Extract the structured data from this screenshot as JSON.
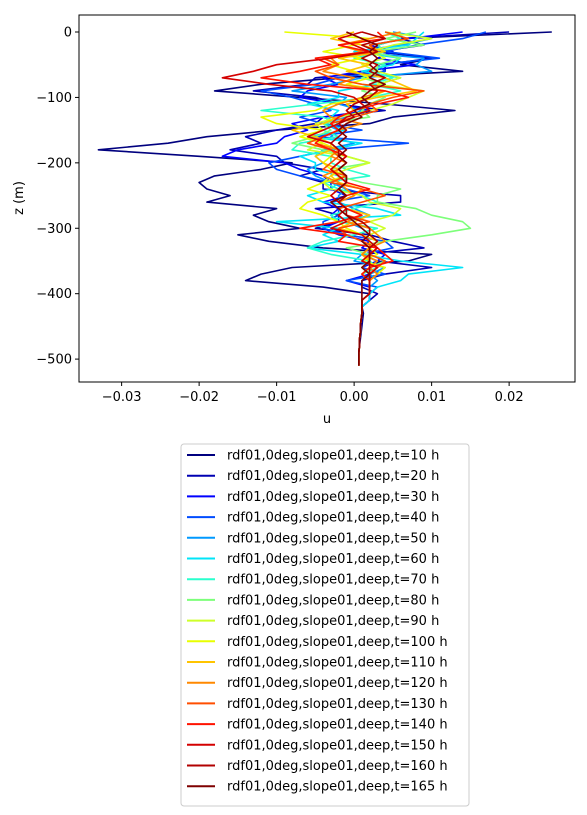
{
  "chart_data": {
    "type": "line",
    "title": "",
    "xlabel": "u",
    "ylabel": "z (m)",
    "xlim": [
      -0.0355,
      0.0285
    ],
    "ylim": [
      -535,
      26
    ],
    "xticks": [
      -0.03,
      -0.02,
      -0.01,
      0.0,
      0.01,
      0.02
    ],
    "xtick_labels": [
      "−0.03",
      "−0.02",
      "−0.01",
      "0.00",
      "0.01",
      "0.02"
    ],
    "yticks": [
      0,
      -100,
      -200,
      -300,
      -400,
      -500
    ],
    "ytick_labels": [
      "0",
      "−100",
      "−200",
      "−300",
      "−400",
      "−500"
    ],
    "grid": false,
    "legend_position": "below",
    "z": [
      0,
      -10,
      -20,
      -30,
      -40,
      -50,
      -60,
      -70,
      -80,
      -90,
      -100,
      -110,
      -120,
      -130,
      -140,
      -150,
      -160,
      -170,
      -180,
      -190,
      -200,
      -210,
      -220,
      -230,
      -240,
      -250,
      -260,
      -270,
      -280,
      -290,
      -300,
      -310,
      -320,
      -330,
      -340,
      -350,
      -360,
      -370,
      -380,
      -390,
      -400,
      -410,
      -420,
      -430,
      -440,
      -450,
      -460,
      -470,
      -480,
      -490,
      -500,
      -510
    ],
    "series": [
      {
        "name": "rdf01,0deg,slope01,deep,t=10 h",
        "color": "#00007f",
        "values": [
          0.0255,
          0.006,
          0.003,
          0.004,
          0.01,
          0.006,
          0.014,
          -0.002,
          -0.012,
          -0.018,
          -0.007,
          0.004,
          0.013,
          0.005,
          0.002,
          -0.01,
          -0.019,
          -0.024,
          -0.033,
          -0.02,
          -0.008,
          -0.012,
          -0.018,
          -0.02,
          -0.019,
          -0.016,
          -0.019,
          -0.01,
          -0.013,
          -0.011,
          -0.007,
          -0.015,
          -0.011,
          -0.004,
          0.01,
          0.007,
          -0.008,
          -0.012,
          -0.014,
          -0.004,
          0.002,
          0.002,
          0.001,
          0.0012,
          0.0011,
          0.001,
          0.0009,
          0.0008,
          0.0007,
          0.0006,
          0.0006,
          0.0006
        ]
      },
      {
        "name": "rdf01,0deg,slope01,deep,t=20 h",
        "color": "#0000b2",
        "values": [
          0.02,
          0.006,
          0.009,
          0.003,
          0.01,
          0.004,
          0.004,
          -0.005,
          -0.006,
          -0.013,
          -0.005,
          -0.002,
          0.004,
          -0.004,
          -0.005,
          -0.01,
          -0.014,
          -0.012,
          -0.016,
          -0.01,
          -0.009,
          -0.004,
          -0.007,
          -0.004,
          -0.004,
          0.006,
          0.006,
          -0.005,
          -0.002,
          -0.002,
          -0.005,
          0.002,
          0.005,
          0.009,
          0.001,
          0.003,
          0.01,
          0.004,
          0.001,
          0.001,
          0.003,
          0.002,
          0.001,
          0.001,
          0.001,
          0.0009,
          0.0008,
          0.0007,
          0.0007,
          0.0006,
          0.0006,
          0.0006
        ]
      },
      {
        "name": "rdf01,0deg,slope01,deep,t=30 h",
        "color": "#0000ff",
        "values": [
          0.014,
          0.007,
          0.002,
          0.005,
          0.003,
          0.008,
          0.001,
          -0.004,
          -0.002,
          -0.006,
          -0.007,
          -0.002,
          0.002,
          -0.004,
          -0.008,
          -0.006,
          -0.009,
          -0.01,
          -0.015,
          -0.017,
          -0.009,
          -0.007,
          -0.004,
          -0.003,
          -0.003,
          -0.001,
          -0.004,
          -0.002,
          -0.003,
          -0.002,
          -0.004,
          -0.002,
          0.002,
          0.001,
          0.004,
          0.003,
          0.001,
          0.002,
          -0.001,
          0.002,
          0.002,
          0.002,
          0.001,
          0.001,
          0.0009,
          0.0008,
          0.0008,
          0.0007,
          0.0007,
          0.0006,
          0.0006,
          0.0006
        ]
      },
      {
        "name": "rdf01,0deg,slope01,deep,t=40 h",
        "color": "#004cff",
        "values": [
          0.017,
          0.014,
          0.008,
          0.004,
          0.011,
          0.003,
          0.004,
          -0.002,
          -0.005,
          -0.012,
          -0.008,
          -0.005,
          -0.003,
          -0.007,
          -0.004,
          0.001,
          -0.005,
          0.007,
          -0.003,
          -0.007,
          -0.011,
          -0.01,
          -0.007,
          -0.003,
          -0.001,
          0.002,
          -0.003,
          -0.002,
          -0.002,
          -0.004,
          -0.004,
          -0.001,
          0.004,
          0.005,
          0.001,
          0.002,
          0.001,
          0.004,
          -0.001,
          0.003,
          0.002,
          0.002,
          0.001,
          0.001,
          0.0009,
          0.0008,
          0.0008,
          0.0007,
          0.0007,
          0.0006,
          0.0006,
          0.0006
        ]
      },
      {
        "name": "rdf01,0deg,slope01,deep,t=50 h",
        "color": "#0099ff",
        "values": [
          0.005,
          0.01,
          0.006,
          0.0,
          0.009,
          0.008,
          0.01,
          0.001,
          -0.003,
          -0.008,
          -0.001,
          -0.002,
          0.001,
          -0.001,
          -0.004,
          -0.002,
          -0.003,
          0.0,
          -0.004,
          -0.005,
          -0.004,
          -0.006,
          -0.005,
          -0.003,
          -0.001,
          -0.002,
          -0.002,
          0.0,
          0.002,
          -0.001,
          0.001,
          0.002,
          0.003,
          0.002,
          0.001,
          0.0,
          0.004,
          0.002,
          0.003,
          0.002,
          0.002,
          0.001,
          0.001,
          0.001,
          0.0009,
          0.0008,
          0.0008,
          0.0007,
          0.0007,
          0.0006,
          0.0006,
          0.0006
        ]
      },
      {
        "name": "rdf01,0deg,slope01,deep,t=60 h",
        "color": "#00e5f8",
        "values": [
          0.009,
          0.008,
          0.007,
          0.0,
          0.006,
          0.005,
          0.001,
          0.006,
          0.003,
          -0.002,
          -0.002,
          -0.006,
          -0.002,
          -0.003,
          -0.004,
          -0.001,
          -0.006,
          0.001,
          -0.003,
          -0.007,
          -0.005,
          -0.005,
          -0.002,
          -0.002,
          -0.003,
          -0.006,
          -0.004,
          0.003,
          0.006,
          -0.01,
          -0.002,
          -0.004,
          -0.002,
          -0.006,
          0.001,
          0.006,
          0.014,
          0.007,
          0.006,
          0.003,
          0.002,
          0.002,
          0.001,
          0.001,
          0.0009,
          0.0008,
          0.0008,
          0.0007,
          0.0007,
          0.0006,
          0.0006,
          0.0006
        ]
      },
      {
        "name": "rdf01,0deg,slope01,deep,t=70 h",
        "color": "#29ffce",
        "values": [
          0.004,
          0.006,
          0.003,
          0.004,
          0.0,
          0.004,
          0.002,
          0.005,
          0.002,
          0.006,
          0.002,
          -0.005,
          -0.012,
          -0.004,
          -0.002,
          -0.004,
          -0.002,
          -0.007,
          -0.008,
          -0.003,
          -0.003,
          -0.001,
          0.002,
          -0.004,
          -0.002,
          0.001,
          0.003,
          0.0,
          -0.003,
          -0.002,
          0.003,
          0.0,
          -0.004,
          -0.006,
          -0.003,
          0.002,
          0.003,
          0.001,
          0.002,
          0.002,
          0.002,
          0.001,
          0.001,
          0.001,
          0.0009,
          0.0008,
          0.0008,
          0.0007,
          0.0007,
          0.0006,
          0.0006,
          0.0006
        ]
      },
      {
        "name": "rdf01,0deg,slope01,deep,t=80 h",
        "color": "#7dff7a",
        "values": [
          0.008,
          0.004,
          0.009,
          0.002,
          0.006,
          0.003,
          0.003,
          0.001,
          0.004,
          0.001,
          0.004,
          0.002,
          0.001,
          0.002,
          -0.004,
          -0.003,
          -0.005,
          -0.008,
          -0.004,
          -0.001,
          0.002,
          -0.003,
          -0.002,
          0.001,
          0.006,
          0.003,
          0.003,
          0.008,
          0.01,
          0.014,
          0.015,
          0.01,
          0.004,
          -0.001,
          0.002,
          0.004,
          0.002,
          0.001,
          0.002,
          0.002,
          0.002,
          0.001,
          0.001,
          0.001,
          0.0009,
          0.0008,
          0.0008,
          0.0007,
          0.0007,
          0.0006,
          0.0006,
          0.0006
        ]
      },
      {
        "name": "rdf01,0deg,slope01,deep,t=90 h",
        "color": "#ceff29",
        "values": [
          0.004,
          0.01,
          0.005,
          0.002,
          0.004,
          0.001,
          0.003,
          0.006,
          0.003,
          0.009,
          0.007,
          0.005,
          0.002,
          -0.002,
          -0.005,
          -0.004,
          -0.006,
          -0.004,
          -0.006,
          -0.001,
          0.002,
          -0.001,
          -0.003,
          -0.004,
          -0.003,
          0.001,
          0.002,
          0.006,
          0.005,
          0.002,
          0.004,
          0.002,
          0.003,
          0.002,
          0.001,
          0.002,
          0.001,
          0.002,
          0.002,
          0.002,
          0.002,
          0.001,
          0.001,
          0.001,
          0.0009,
          0.0008,
          0.0008,
          0.0007,
          0.0007,
          0.0006,
          0.0006,
          0.0006
        ]
      },
      {
        "name": "rdf01,0deg,slope01,deep,t=100 h",
        "color": "#e8ff00",
        "values": [
          -0.009,
          0.002,
          0.0,
          -0.004,
          0.001,
          -0.003,
          0.0,
          0.002,
          -0.001,
          0.004,
          0.002,
          -0.003,
          -0.005,
          -0.012,
          -0.01,
          -0.004,
          -0.007,
          -0.004,
          -0.002,
          -0.003,
          -0.004,
          -0.003,
          -0.001,
          -0.004,
          -0.006,
          -0.003,
          -0.006,
          -0.007,
          -0.004,
          -0.002,
          -0.001,
          0.001,
          0.002,
          0.002,
          0.003,
          0.001,
          0.004,
          0.003,
          0.002,
          0.002,
          0.002,
          0.001,
          0.001,
          0.001,
          0.0009,
          0.0008,
          0.0008,
          0.0007,
          0.0007,
          0.0006,
          0.0006,
          0.0006
        ]
      },
      {
        "name": "rdf01,0deg,slope01,deep,t=110 h",
        "color": "#ffc400",
        "values": [
          0.0,
          -0.003,
          0.001,
          0.004,
          -0.002,
          0.002,
          -0.001,
          0.004,
          0.006,
          0.008,
          0.003,
          -0.001,
          0.0,
          -0.002,
          -0.004,
          -0.008,
          -0.005,
          -0.003,
          -0.003,
          -0.005,
          -0.004,
          -0.002,
          -0.003,
          -0.002,
          0.001,
          0.0,
          -0.002,
          -0.001,
          0.002,
          0.0,
          -0.002,
          0.001,
          0.003,
          0.002,
          0.001,
          0.002,
          0.002,
          0.001,
          0.002,
          0.002,
          0.002,
          0.001,
          0.001,
          0.001,
          0.0009,
          0.0008,
          0.0008,
          0.0007,
          0.0007,
          0.0006,
          0.0006,
          0.0006
        ]
      },
      {
        "name": "rdf01,0deg,slope01,deep,t=120 h",
        "color": "#ff8900",
        "values": [
          0.006,
          0.002,
          -0.002,
          0.001,
          -0.003,
          -0.002,
          -0.004,
          0.0,
          -0.002,
          0.004,
          0.001,
          -0.002,
          -0.004,
          -0.003,
          0.001,
          -0.002,
          -0.004,
          -0.005,
          -0.002,
          -0.003,
          -0.001,
          -0.002,
          -0.004,
          -0.002,
          -0.001,
          0.0,
          -0.002,
          -0.001,
          0.001,
          -0.001,
          0.002,
          0.003,
          0.004,
          0.002,
          0.001,
          0.003,
          0.002,
          0.003,
          0.002,
          0.002,
          0.002,
          0.001,
          0.001,
          0.001,
          0.0009,
          0.0008,
          0.0008,
          0.0007,
          0.0007,
          0.0006,
          0.0006,
          0.0006
        ]
      },
      {
        "name": "rdf01,0deg,slope01,deep,t=130 h",
        "color": "#ff4e00",
        "values": [
          0.004,
          0.007,
          0.002,
          0.003,
          -0.004,
          -0.002,
          -0.005,
          -0.003,
          0.001,
          0.009,
          0.005,
          0.002,
          0.003,
          0.0,
          -0.003,
          -0.002,
          -0.004,
          -0.006,
          -0.003,
          -0.002,
          -0.003,
          -0.004,
          -0.001,
          -0.003,
          0.001,
          0.004,
          0.001,
          -0.002,
          -0.001,
          0.002,
          -0.002,
          -0.001,
          0.001,
          0.003,
          0.002,
          0.004,
          0.003,
          0.002,
          0.002,
          0.002,
          0.002,
          0.001,
          0.001,
          0.001,
          0.0009,
          0.0008,
          0.0008,
          0.0007,
          0.0007,
          0.0006,
          0.0006,
          0.0006
        ]
      },
      {
        "name": "rdf01,0deg,slope01,deep,t=140 h",
        "color": "#ff1300",
        "values": [
          0.003,
          0.004,
          -0.002,
          0.002,
          -0.005,
          -0.003,
          -0.007,
          -0.012,
          -0.006,
          0.004,
          0.007,
          0.003,
          0.0,
          -0.002,
          -0.003,
          -0.002,
          -0.004,
          -0.005,
          -0.003,
          -0.001,
          -0.002,
          -0.003,
          -0.002,
          -0.001,
          0.002,
          -0.001,
          -0.002,
          -0.001,
          0.001,
          -0.002,
          -0.007,
          -0.001,
          -0.002,
          0.003,
          0.004,
          0.005,
          0.002,
          0.001,
          0.002,
          0.002,
          0.002,
          0.001,
          0.001,
          0.001,
          0.0009,
          0.0008,
          0.0008,
          0.0007,
          0.0007,
          0.0006,
          0.0006,
          0.0006
        ]
      },
      {
        "name": "rdf01,0deg,slope01,deep,t=150 h",
        "color": "#d40000",
        "values": [
          0.001,
          -0.002,
          0.0,
          0.002,
          -0.003,
          -0.01,
          -0.013,
          -0.017,
          -0.011,
          -0.003,
          0.0,
          0.001,
          0.002,
          -0.001,
          -0.002,
          -0.004,
          -0.006,
          -0.003,
          -0.002,
          -0.001,
          -0.002,
          -0.003,
          -0.002,
          -0.001,
          -0.002,
          -0.003,
          -0.002,
          -0.001,
          -0.002,
          -0.001,
          -0.003,
          0.001,
          0.002,
          0.003,
          0.002,
          0.001,
          0.003,
          0.002,
          0.002,
          0.002,
          0.002,
          0.001,
          0.001,
          0.001,
          0.0009,
          0.0008,
          0.0008,
          0.0007,
          0.0007,
          0.0006,
          0.0006,
          0.0006
        ]
      },
      {
        "name": "rdf01,0deg,slope01,deep,t=160 h",
        "color": "#b20000",
        "values": [
          0.001,
          0.004,
          0.001,
          0.003,
          0.001,
          0.003,
          0.002,
          0.004,
          0.002,
          0.003,
          0.002,
          0.0,
          -0.001,
          0.0,
          -0.002,
          -0.001,
          -0.002,
          -0.003,
          -0.002,
          -0.002,
          -0.001,
          -0.002,
          -0.001,
          -0.001,
          -0.002,
          -0.001,
          -0.002,
          -0.001,
          -0.001,
          0.001,
          0.002,
          0.002,
          0.003,
          0.002,
          0.002,
          0.002,
          0.002,
          0.002,
          0.002,
          0.002,
          0.002,
          0.001,
          0.001,
          0.001,
          0.0009,
          0.0008,
          0.0008,
          0.0007,
          0.0007,
          0.0006,
          0.0006,
          0.0006
        ]
      },
      {
        "name": "rdf01,0deg,slope01,deep,t=165 h",
        "color": "#7f0000",
        "values": [
          -0.001,
          0.001,
          0.003,
          0.002,
          0.003,
          0.002,
          0.003,
          0.002,
          0.004,
          0.002,
          0.001,
          0.002,
          0.0,
          0.001,
          -0.001,
          -0.002,
          -0.001,
          -0.002,
          -0.001,
          -0.002,
          -0.001,
          -0.002,
          -0.001,
          -0.001,
          -0.002,
          -0.001,
          -0.003,
          -0.002,
          -0.001,
          0.0,
          0.001,
          0.002,
          0.001,
          0.002,
          0.002,
          0.002,
          0.001,
          0.002,
          0.001,
          0.001,
          0.001,
          0.001,
          0.001,
          0.001,
          0.0009,
          0.0008,
          0.0008,
          0.0007,
          0.0007,
          0.0006,
          0.0006,
          0.0006
        ]
      }
    ]
  }
}
